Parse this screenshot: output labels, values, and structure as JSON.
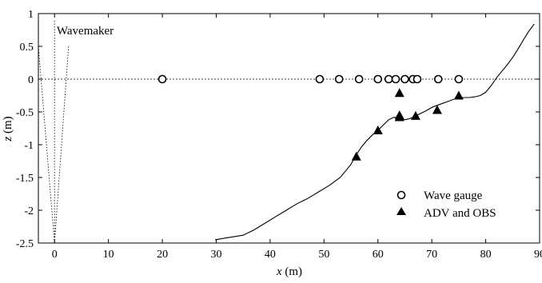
{
  "chart_data": {
    "type": "scatter",
    "xlabel": {
      "var": "x",
      "unit": " (m)"
    },
    "ylabel": {
      "var": "z",
      "unit": " (m)"
    },
    "xlim": [
      -3,
      90
    ],
    "ylim": [
      -2.5,
      1
    ],
    "xticks": [
      0,
      10,
      20,
      30,
      40,
      50,
      60,
      70,
      80,
      90
    ],
    "yticks": [
      1,
      0.5,
      0,
      -0.5,
      -1,
      -1.5,
      -2,
      -2.5
    ],
    "grid": false,
    "legend_position": "lower-right",
    "annotations": [
      {
        "text": "Wavemaker",
        "x": 0.4,
        "y": 0.68
      }
    ],
    "still_water_level": 0,
    "wavemaker": {
      "pivot": [
        0,
        -2.5
      ],
      "lines_top": [
        {
          "x": -3,
          "y": 0.5
        },
        {
          "x": 0,
          "y": 0.9
        },
        {
          "x": 2.6,
          "y": 0.5
        }
      ]
    },
    "bathymetry": {
      "x": [
        29.8,
        32,
        35,
        37,
        39,
        41,
        43,
        45,
        47,
        49,
        51,
        53,
        54,
        55,
        56,
        57,
        58,
        59,
        60,
        61,
        62,
        63,
        64,
        65,
        66,
        67,
        68,
        69,
        70,
        71,
        72,
        73,
        74,
        75,
        76,
        77,
        78,
        79,
        80,
        81,
        82,
        83,
        84,
        85,
        86,
        87,
        88,
        89
      ],
      "y": [
        -2.45,
        -2.42,
        -2.38,
        -2.3,
        -2.2,
        -2.1,
        -2.0,
        -1.9,
        -1.82,
        -1.72,
        -1.62,
        -1.5,
        -1.4,
        -1.3,
        -1.15,
        -1.03,
        -0.93,
        -0.85,
        -0.78,
        -0.7,
        -0.62,
        -0.58,
        -0.6,
        -0.62,
        -0.6,
        -0.56,
        -0.52,
        -0.48,
        -0.43,
        -0.4,
        -0.37,
        -0.34,
        -0.31,
        -0.29,
        -0.28,
        -0.28,
        -0.27,
        -0.25,
        -0.2,
        -0.1,
        0.02,
        0.12,
        0.22,
        0.33,
        0.46,
        0.6,
        0.73,
        0.84
      ]
    },
    "series": [
      {
        "name": "Wave gauge",
        "marker": "open-circle",
        "x": [
          20,
          49.2,
          52.8,
          56.5,
          60,
          62,
          63.3,
          65,
          66.5,
          67.3,
          71.2,
          75
        ],
        "y": [
          0,
          0,
          0,
          0,
          0,
          0,
          0,
          0,
          0,
          0,
          0,
          0
        ]
      },
      {
        "name": "ADV and OBS",
        "marker": "filled-triangle",
        "x": [
          56,
          60,
          64,
          64,
          64,
          67,
          71,
          75
        ],
        "y": [
          -1.18,
          -0.78,
          -0.21,
          -0.55,
          -0.58,
          -0.56,
          -0.47,
          -0.25
        ]
      }
    ]
  }
}
